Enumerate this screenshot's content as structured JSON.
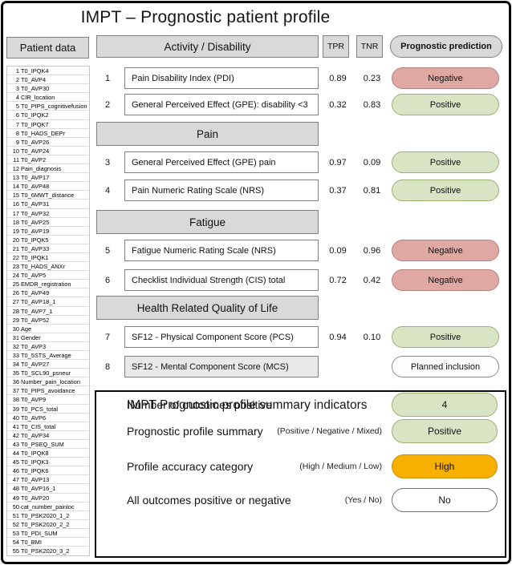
{
  "title": "IMPT – Prognostic patient profile",
  "colors": {
    "header_grey": "#d9d9d9",
    "positive_green": "#d8e4c3",
    "negative_red": "#e0a8a3",
    "high_amber": "#f7af00",
    "planned_white": "#fdfdfd"
  },
  "patient_data": {
    "header": "Patient data",
    "items": [
      "T0_IPQK4",
      "T0_AVP4",
      "T0_AVP30",
      "CIR_location",
      "T0_PIPS_cognitivefusion",
      "T0_IPQK2",
      "T0_IPQK7",
      "T0_HADS_DEPr",
      "T0_AVP26",
      "T0_AVP24",
      "T0_AVP2",
      "Pain_diagnosis",
      "T0_AVP17",
      "T0_AVP48",
      "T0_6MWT_distance",
      "T0_AVP31",
      "T0_AVP32",
      "T0_AVP25",
      "T0_AVP19",
      "T0_IPQK5",
      "T0_AVP33",
      "T0_IPQK1",
      "T0_HADS_ANXr",
      "T0_AVP5",
      "EMDR_registration",
      "T0_AVP49",
      "T0_AVP18_1",
      "T0_AVP7_1",
      "T0_AVP52",
      "Age",
      "Gender",
      "T0_AVP3",
      "T0_5STS_Average",
      "T0_AVP27",
      "T0_SCL90_psneur",
      "Number_pain_location",
      "T0_PIPS_avoidance",
      "T0_AVP9",
      "T0_PCS_total",
      "T0_AVP6",
      "T0_CIS_total",
      "T0_AVP34",
      "T0_PSEQ_SUM",
      "T0_IPQK8",
      "T0_IPQK3",
      "T0_IPQK6",
      "T0_AVP13",
      "T0_AVP16_1",
      "T0_AVP20",
      "cat_number_painloc",
      "T0_PSK2020_1_2",
      "T0_PSK2020_2_2",
      "T0_PDI_SUM",
      "T0_BMI",
      "T0_PSK2020_3_2"
    ]
  },
  "columns": {
    "tpr": "TPR",
    "tnr": "TNR",
    "prediction": "Prognostic prediction"
  },
  "sections": {
    "activity": "Activity / Disability",
    "pain": "Pain",
    "fatigue": "Fatigue",
    "hrqol": "Health Related Quality of Life"
  },
  "outcomes": [
    {
      "num": "1",
      "label": "Pain Disability Index (PDI)",
      "tpr": "0.89",
      "tnr": "0.23",
      "prediction": "Negative",
      "type": "negative"
    },
    {
      "num": "2",
      "label": "General Perceived Effect (GPE): disability <3",
      "tpr": "0.32",
      "tnr": "0.83",
      "prediction": "Positive",
      "type": "positive"
    },
    {
      "num": "3",
      "label": "General Perceived Effect (GPE) pain",
      "tpr": "0.97",
      "tnr": "0.09",
      "prediction": "Positive",
      "type": "positive"
    },
    {
      "num": "4",
      "label": "Pain Numeric Rating Scale (NRS)",
      "tpr": "0.37",
      "tnr": "0.81",
      "prediction": "Positive",
      "type": "positive"
    },
    {
      "num": "5",
      "label": "Fatigue Numeric Rating Scale (NRS)",
      "tpr": "0.09",
      "tnr": "0.96",
      "prediction": "Negative",
      "type": "negative"
    },
    {
      "num": "6",
      "label": "Checklist Individual Strength (CIS) total",
      "tpr": "0.72",
      "tnr": "0.42",
      "prediction": "Negative",
      "type": "negative"
    },
    {
      "num": "7",
      "label": "SF12 - Physical Component Score (PCS)",
      "tpr": "0.94",
      "tnr": "0.10",
      "prediction": "Positive",
      "type": "positive"
    },
    {
      "num": "8",
      "label": "SF12 - Mental Component Score (MCS)",
      "tpr": "",
      "tnr": "",
      "prediction": "Planned inclusion",
      "type": "planned"
    }
  ],
  "summary": {
    "title": "IMPT Prognostic profile summary indicators",
    "rows": [
      {
        "label": "Number of outcomes positive",
        "qualifier": "",
        "value": "4",
        "type": "positive"
      },
      {
        "label": "Prognostic profile summary",
        "qualifier": "(Positive / Negative / Mixed)",
        "value": "Positive",
        "type": "positive"
      },
      {
        "label": "Profile accuracy category",
        "qualifier": "(High / Medium / Low)",
        "value": "High",
        "type": "high"
      },
      {
        "label": "All outcomes positive or negative",
        "qualifier": "(Yes / No)",
        "value": "No",
        "type": "plain"
      }
    ]
  }
}
